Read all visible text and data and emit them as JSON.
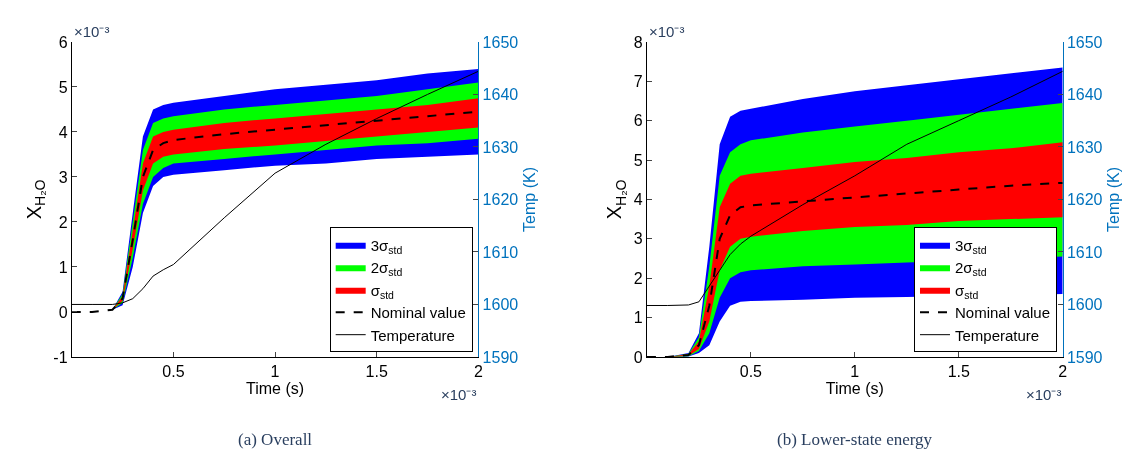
{
  "chart_data": [
    {
      "type": "line",
      "xlabel": "Time (s)",
      "ylabel": "X$_{H₂O}$",
      "y2label": "Temp (K)",
      "annotations": [
        "(a) Overall",
        "×10⁻³",
        "×10⁻³"
      ],
      "x": [
        0,
        0.1,
        0.2,
        0.25,
        0.3,
        0.35,
        0.4,
        0.45,
        0.5,
        0.75,
        1,
        1.25,
        1.5,
        1.75,
        2
      ],
      "xlim": [
        0,
        2
      ],
      "xticks": [
        0.5,
        1,
        1.5,
        2
      ],
      "ylim": [
        -1,
        6
      ],
      "yticks": [
        -1,
        0,
        1,
        2,
        3,
        4,
        5,
        6
      ],
      "y2lim": [
        1590,
        1650
      ],
      "y2ticks": [
        1590,
        1600,
        1610,
        1620,
        1630,
        1640,
        1650
      ],
      "legend": "bottom right",
      "series": [
        {
          "name": "3σ$_{std}$",
          "color": "#0000ff",
          "values": [
            null,
            null,
            null,
            null,
            null,
            null,
            null,
            null,
            null,
            null,
            null,
            null,
            null,
            null,
            null
          ],
          "lower": [
            0,
            0,
            0.05,
            0.15,
            1.0,
            2.2,
            2.8,
            3.0,
            3.05,
            3.15,
            3.25,
            3.3,
            3.4,
            3.45,
            3.5
          ],
          "upper": [
            0,
            0,
            0.05,
            0.45,
            2.2,
            3.9,
            4.5,
            4.6,
            4.65,
            4.8,
            4.95,
            5.05,
            5.15,
            5.3,
            5.4
          ]
        },
        {
          "name": "2σ$_{std}$",
          "color": "#00ff00",
          "values": [
            null,
            null,
            null,
            null,
            null,
            null,
            null,
            null,
            null,
            null,
            null,
            null,
            null,
            null,
            null
          ],
          "lower": [
            0,
            0,
            0.05,
            0.2,
            1.2,
            2.4,
            3.0,
            3.2,
            3.3,
            3.4,
            3.5,
            3.6,
            3.7,
            3.75,
            3.85
          ],
          "upper": [
            0,
            0,
            0.05,
            0.4,
            2.0,
            3.6,
            4.2,
            4.3,
            4.35,
            4.5,
            4.6,
            4.7,
            4.8,
            4.95,
            5.1
          ]
        },
        {
          "name": "σ$_{std}$",
          "color": "#ff0000",
          "values": [
            null,
            null,
            null,
            null,
            null,
            null,
            null,
            null,
            null,
            null,
            null,
            null,
            null,
            null,
            null
          ],
          "lower": [
            0,
            0,
            0.05,
            0.25,
            1.4,
            2.7,
            3.3,
            3.45,
            3.5,
            3.62,
            3.7,
            3.8,
            3.9,
            4.0,
            4.1
          ],
          "upper": [
            0,
            0,
            0.05,
            0.35,
            1.8,
            3.3,
            3.9,
            4.0,
            4.05,
            4.2,
            4.3,
            4.4,
            4.5,
            4.6,
            4.75
          ]
        },
        {
          "name": "Nominal value",
          "line_style": "dashed",
          "color": "#000000",
          "values": [
            0,
            0,
            0.05,
            0.3,
            1.6,
            3.0,
            3.6,
            3.75,
            3.82,
            3.95,
            4.05,
            4.15,
            4.25,
            4.35,
            4.45
          ]
        },
        {
          "name": "Temperature",
          "line_style": "solid",
          "axis": "y2",
          "color": "#000000",
          "values": [
            1600,
            1600,
            1600,
            1600.3,
            1601.1,
            1603,
            1605.4,
            1606.6,
            1607.6,
            1616.5,
            1625,
            1630.5,
            1635.4,
            1640,
            1644.4
          ]
        }
      ]
    },
    {
      "type": "line",
      "xlabel": "Time (s)",
      "ylabel": "X$_{H₂O}$",
      "y2label": "Temp (K)",
      "annotations": [
        "(b) Lower-state energy",
        "×10⁻³",
        "×10⁻³"
      ],
      "x": [
        0,
        0.1,
        0.2,
        0.25,
        0.3,
        0.35,
        0.4,
        0.45,
        0.5,
        0.75,
        1,
        1.25,
        1.5,
        1.75,
        2
      ],
      "xlim": [
        0,
        2
      ],
      "xticks": [
        0.5,
        1,
        1.5,
        2
      ],
      "ylim": [
        0,
        8
      ],
      "yticks": [
        0,
        1,
        2,
        3,
        4,
        5,
        6,
        7,
        8
      ],
      "y2lim": [
        1590,
        1650
      ],
      "y2ticks": [
        1590,
        1600,
        1610,
        1620,
        1630,
        1640,
        1650
      ],
      "legend": "bottom right",
      "series": [
        {
          "name": "3σ$_{std}$",
          "color": "#0000ff",
          "x": [
            0,
            0.1,
            0.2,
            0.25,
            0.3,
            0.35,
            0.4,
            0.45,
            0.5,
            0.75,
            1,
            1.25,
            2
          ],
          "values": [
            null,
            null,
            null,
            null,
            null,
            null,
            null,
            null,
            null,
            null,
            null,
            null,
            null
          ],
          "lower": [
            0,
            0,
            0.01,
            0.1,
            0.3,
            0.9,
            1.3,
            1.4,
            1.42,
            1.45,
            1.5,
            1.52,
            1.6
          ],
          "upper": [
            0,
            0,
            0.1,
            0.6,
            2.8,
            5.4,
            6.1,
            6.25,
            6.3,
            6.55,
            6.75,
            6.9,
            7.35
          ]
        },
        {
          "name": "2σ$_{std}$",
          "color": "#00ff00",
          "x": [
            0,
            0.1,
            0.2,
            0.25,
            0.3,
            0.35,
            0.4,
            0.45,
            0.5,
            0.75,
            1,
            1.25,
            2
          ],
          "values": [
            null,
            null,
            null,
            null,
            null,
            null,
            null,
            null,
            null,
            null,
            null,
            null,
            null
          ],
          "lower": [
            0,
            0,
            0.02,
            0.15,
            0.6,
            1.5,
            2.0,
            2.15,
            2.2,
            2.3,
            2.35,
            2.4,
            2.55
          ],
          "upper": [
            0,
            0,
            0.08,
            0.5,
            2.3,
            4.6,
            5.2,
            5.4,
            5.5,
            5.7,
            5.85,
            6.0,
            6.45
          ]
        },
        {
          "name": "σ$_{std}$",
          "color": "#ff0000",
          "values": [
            null,
            null,
            null,
            null,
            null,
            null,
            null,
            null,
            null,
            null,
            null,
            null,
            null,
            null,
            null
          ],
          "lower": [
            0,
            0,
            0.03,
            0.2,
            0.9,
            2.2,
            2.8,
            3.0,
            3.05,
            3.2,
            3.3,
            3.35,
            3.45,
            3.5,
            3.55
          ],
          "upper": [
            0,
            0,
            0.07,
            0.4,
            1.8,
            3.8,
            4.4,
            4.6,
            4.65,
            4.8,
            4.95,
            5.05,
            5.2,
            5.3,
            5.45
          ]
        },
        {
          "name": "Nominal value",
          "line_style": "dashed",
          "color": "#000000",
          "values": [
            0,
            0,
            0.05,
            0.3,
            1.3,
            3.0,
            3.6,
            3.8,
            3.85,
            3.95,
            4.05,
            4.15,
            4.25,
            4.35,
            4.42
          ]
        },
        {
          "name": "Temperature",
          "line_style": "solid",
          "axis": "y2",
          "color": "#000000",
          "values": [
            1599.8,
            1599.8,
            1599.9,
            1600.5,
            1603.5,
            1606.5,
            1609.5,
            1611.5,
            1613,
            1619,
            1624.5,
            1630.5,
            1635,
            1639.5,
            1644.4
          ]
        }
      ]
    }
  ]
}
